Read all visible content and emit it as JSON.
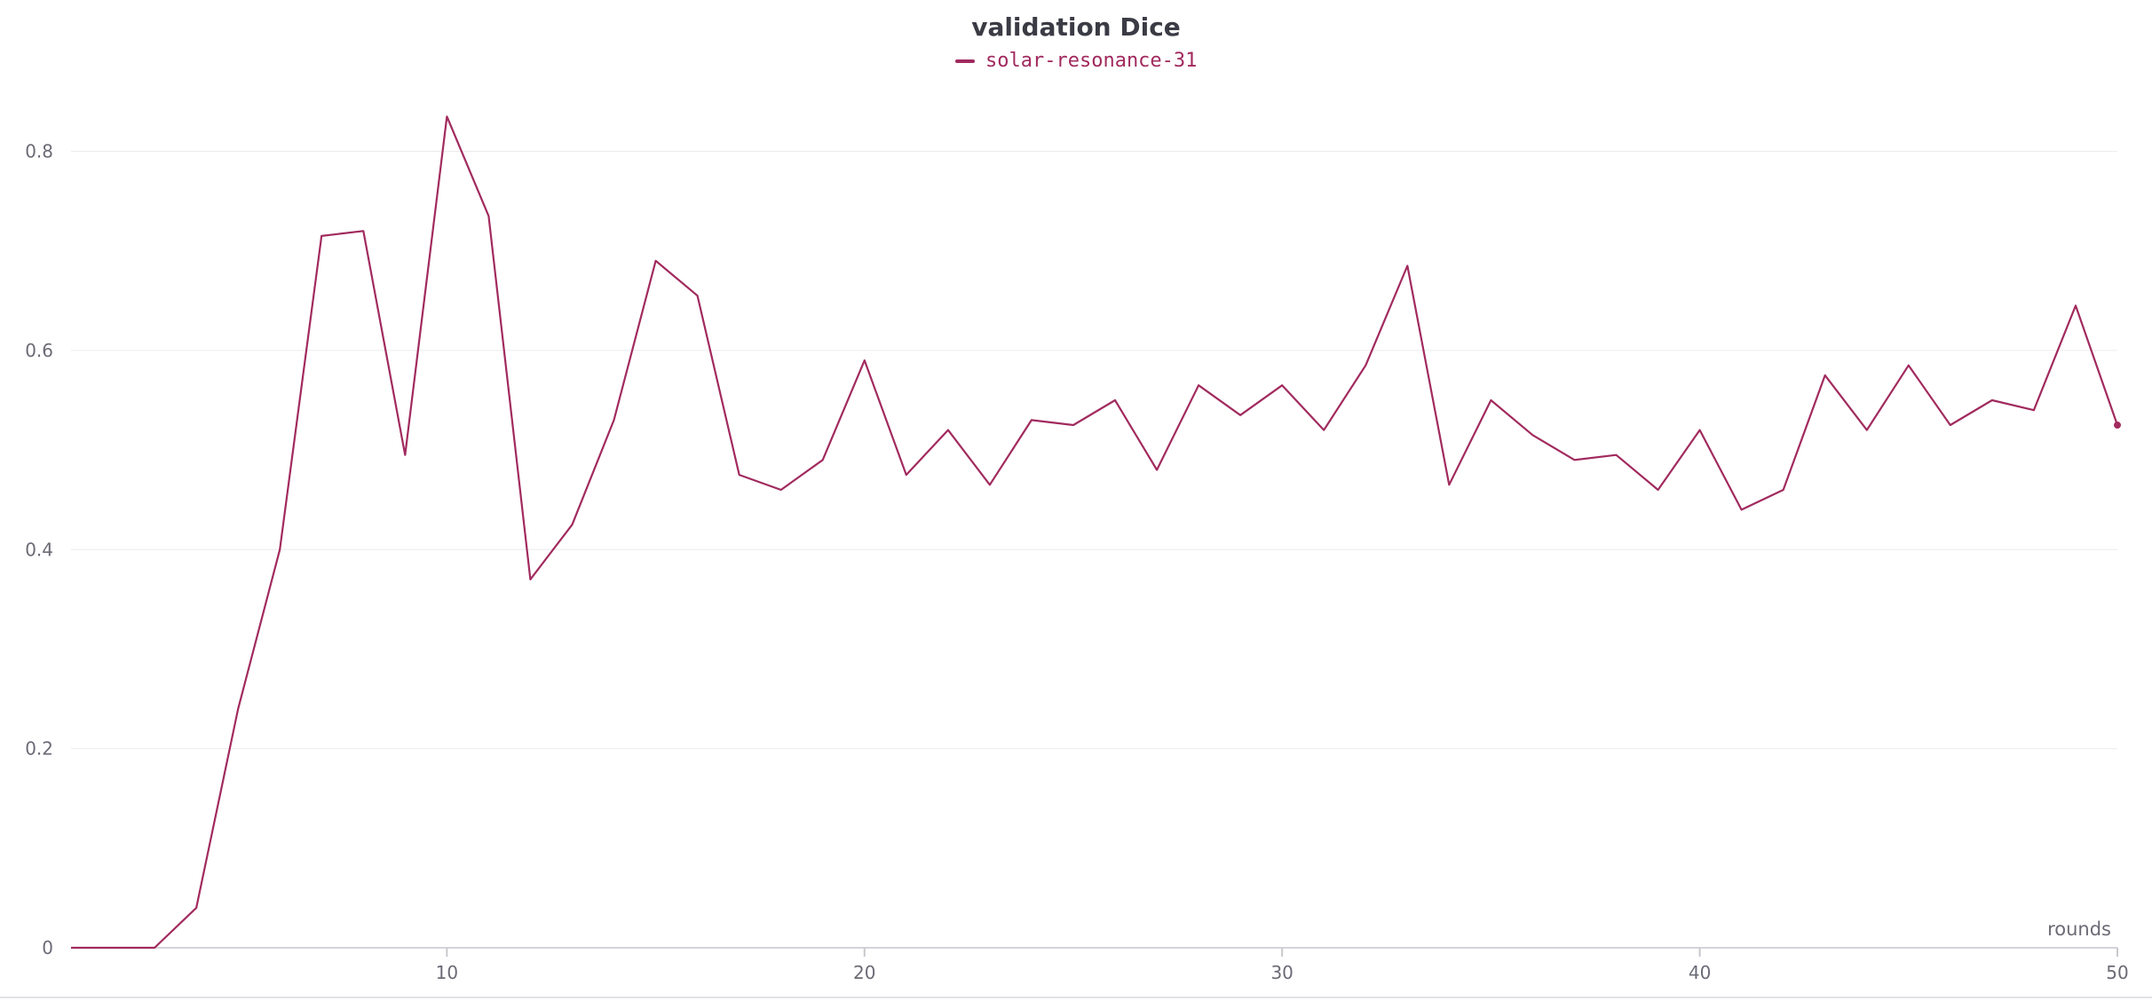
{
  "chart_data": {
    "type": "line",
    "title": "validation Dice",
    "xlabel": "rounds",
    "ylabel": "",
    "xlim": [
      1,
      50
    ],
    "ylim": [
      0,
      0.87
    ],
    "xticks": [
      10,
      20,
      30,
      40,
      50
    ],
    "yticks": [
      0,
      0.2,
      0.4,
      0.6,
      0.8
    ],
    "ytick_labels": [
      "0",
      "0.2",
      "0.4",
      "0.6",
      "0.8"
    ],
    "grid": true,
    "legend_position": "top-center",
    "series": [
      {
        "name": "solar-resonance-31",
        "color": "#a12a5e",
        "x": [
          1,
          2,
          3,
          4,
          5,
          6,
          7,
          8,
          9,
          10,
          11,
          12,
          13,
          14,
          15,
          16,
          17,
          18,
          19,
          20,
          21,
          22,
          23,
          24,
          25,
          26,
          27,
          28,
          29,
          30,
          31,
          32,
          33,
          34,
          35,
          36,
          37,
          38,
          39,
          40,
          41,
          42,
          43,
          44,
          45,
          46,
          47,
          48,
          49,
          50
        ],
        "values": [
          0,
          0,
          0,
          0.04,
          0.24,
          0.4,
          0.715,
          0.72,
          0.495,
          0.835,
          0.735,
          0.37,
          0.425,
          0.53,
          0.69,
          0.655,
          0.475,
          0.46,
          0.49,
          0.59,
          0.475,
          0.52,
          0.465,
          0.53,
          0.525,
          0.55,
          0.48,
          0.565,
          0.535,
          0.565,
          0.52,
          0.585,
          0.685,
          0.465,
          0.55,
          0.515,
          0.49,
          0.495,
          0.46,
          0.52,
          0.44,
          0.46,
          0.575,
          0.52,
          0.585,
          0.525,
          0.55,
          0.54,
          0.645,
          0.525
        ]
      }
    ]
  }
}
